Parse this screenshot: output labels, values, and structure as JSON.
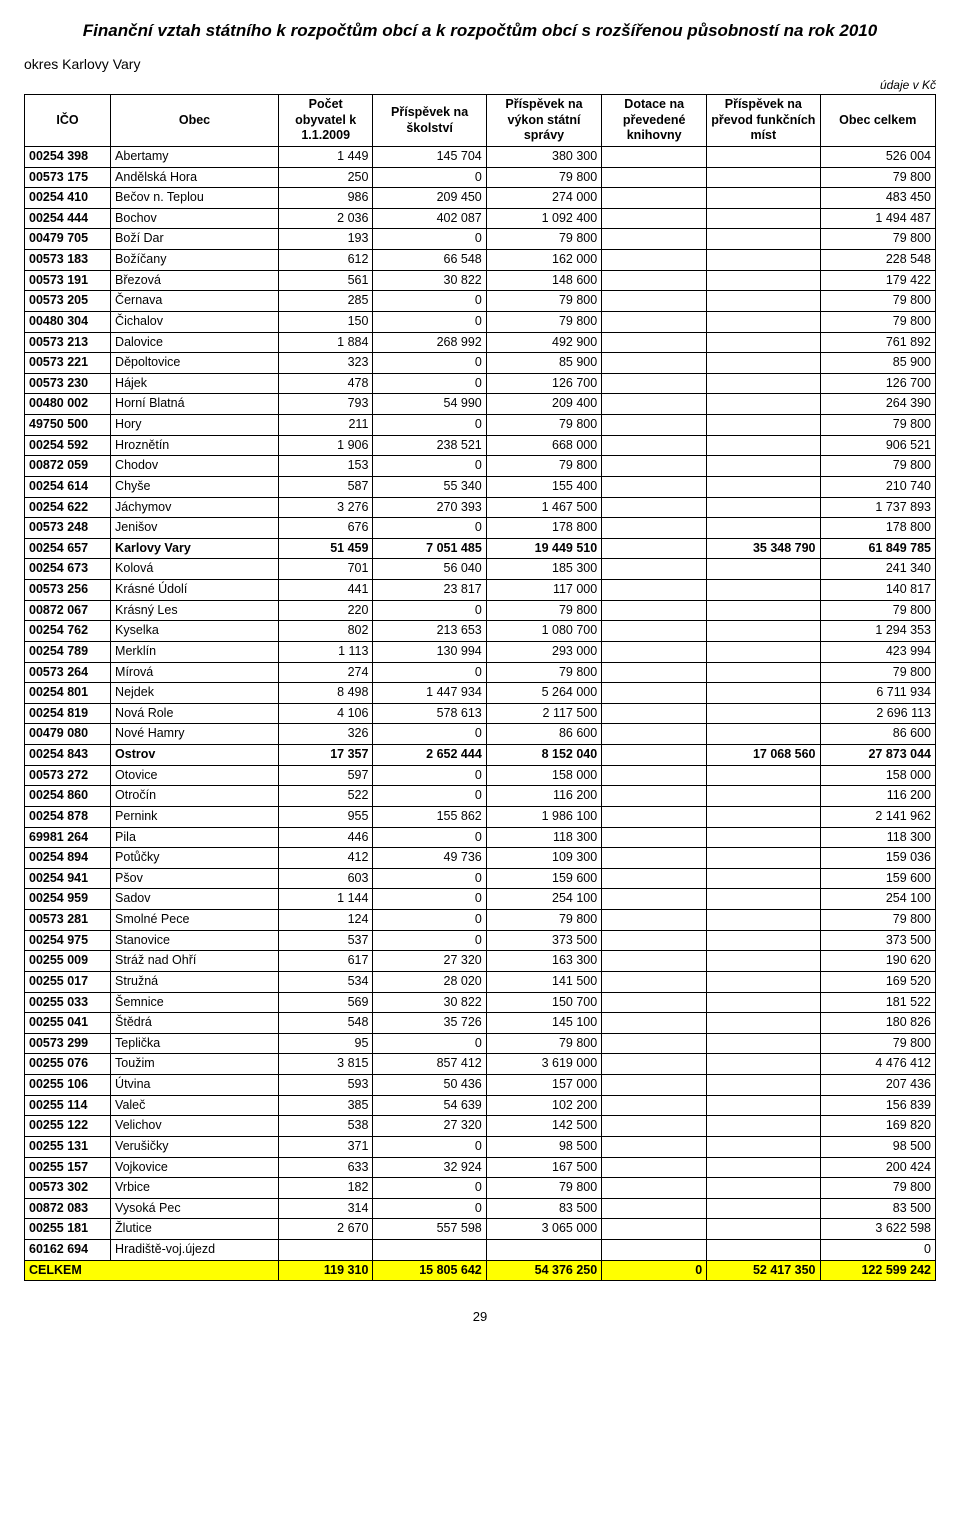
{
  "title": "Finanční vztah státního k rozpočtům obcí a k rozpočtům obcí s rozšířenou působností na rok 2010",
  "district_label": "okres Karlovy Vary",
  "units_label": "údaje v Kč",
  "page_number": "29",
  "columns": [
    "IČO",
    "Obec",
    "Počet obyvatel k 1.1.2009",
    "Příspěvek na školství",
    "Příspěvek na výkon státní správy",
    "Dotace na převedené knihovny",
    "Příspěvek na převod funkčních míst",
    "Obec celkem"
  ],
  "rows": [
    {
      "ico": "00254 398",
      "obec": "Abertamy",
      "v": [
        "1 449",
        "145 704",
        "380 300",
        "",
        "",
        "526 004"
      ]
    },
    {
      "ico": "00573 175",
      "obec": "Andělská Hora",
      "v": [
        "250",
        "0",
        "79 800",
        "",
        "",
        "79 800"
      ]
    },
    {
      "ico": "00254 410",
      "obec": "Bečov n. Teplou",
      "v": [
        "986",
        "209 450",
        "274 000",
        "",
        "",
        "483 450"
      ]
    },
    {
      "ico": "00254 444",
      "obec": "Bochov",
      "v": [
        "2 036",
        "402 087",
        "1 092 400",
        "",
        "",
        "1 494 487"
      ]
    },
    {
      "ico": "00479 705",
      "obec": "Boží Dar",
      "v": [
        "193",
        "0",
        "79 800",
        "",
        "",
        "79 800"
      ]
    },
    {
      "ico": "00573 183",
      "obec": "Božíčany",
      "v": [
        "612",
        "66 548",
        "162 000",
        "",
        "",
        "228 548"
      ]
    },
    {
      "ico": "00573 191",
      "obec": "Březová",
      "v": [
        "561",
        "30 822",
        "148 600",
        "",
        "",
        "179 422"
      ]
    },
    {
      "ico": "00573 205",
      "obec": "Černava",
      "v": [
        "285",
        "0",
        "79 800",
        "",
        "",
        "79 800"
      ]
    },
    {
      "ico": "00480 304",
      "obec": "Čichalov",
      "v": [
        "150",
        "0",
        "79 800",
        "",
        "",
        "79 800"
      ]
    },
    {
      "ico": "00573 213",
      "obec": "Dalovice",
      "v": [
        "1 884",
        "268 992",
        "492 900",
        "",
        "",
        "761 892"
      ]
    },
    {
      "ico": "00573 221",
      "obec": "Děpoltovice",
      "v": [
        "323",
        "0",
        "85 900",
        "",
        "",
        "85 900"
      ]
    },
    {
      "ico": "00573 230",
      "obec": "Hájek",
      "v": [
        "478",
        "0",
        "126 700",
        "",
        "",
        "126 700"
      ]
    },
    {
      "ico": "00480 002",
      "obec": "Horní Blatná",
      "v": [
        "793",
        "54 990",
        "209 400",
        "",
        "",
        "264 390"
      ]
    },
    {
      "ico": "49750 500",
      "obec": "Hory",
      "v": [
        "211",
        "0",
        "79 800",
        "",
        "",
        "79 800"
      ]
    },
    {
      "ico": "00254 592",
      "obec": "Hroznětín",
      "v": [
        "1 906",
        "238 521",
        "668 000",
        "",
        "",
        "906 521"
      ]
    },
    {
      "ico": "00872 059",
      "obec": "Chodov",
      "v": [
        "153",
        "0",
        "79 800",
        "",
        "",
        "79 800"
      ]
    },
    {
      "ico": "00254 614",
      "obec": "Chyše",
      "v": [
        "587",
        "55 340",
        "155 400",
        "",
        "",
        "210 740"
      ]
    },
    {
      "ico": "00254 622",
      "obec": "Jáchymov",
      "v": [
        "3 276",
        "270 393",
        "1 467 500",
        "",
        "",
        "1 737 893"
      ]
    },
    {
      "ico": "00573 248",
      "obec": "Jenišov",
      "v": [
        "676",
        "0",
        "178 800",
        "",
        "",
        "178 800"
      ]
    },
    {
      "ico": "00254 657",
      "obec": "Karlovy Vary",
      "v": [
        "51 459",
        "7 051 485",
        "19 449 510",
        "",
        "35 348 790",
        "61 849 785"
      ],
      "hl": true
    },
    {
      "ico": "00254 673",
      "obec": "Kolová",
      "v": [
        "701",
        "56 040",
        "185 300",
        "",
        "",
        "241 340"
      ]
    },
    {
      "ico": "00573 256",
      "obec": "Krásné Údolí",
      "v": [
        "441",
        "23 817",
        "117 000",
        "",
        "",
        "140 817"
      ]
    },
    {
      "ico": "00872 067",
      "obec": "Krásný Les",
      "v": [
        "220",
        "0",
        "79 800",
        "",
        "",
        "79 800"
      ]
    },
    {
      "ico": "00254 762",
      "obec": "Kyselka",
      "v": [
        "802",
        "213 653",
        "1 080 700",
        "",
        "",
        "1 294 353"
      ]
    },
    {
      "ico": "00254 789",
      "obec": "Merklín",
      "v": [
        "1 113",
        "130 994",
        "293 000",
        "",
        "",
        "423 994"
      ]
    },
    {
      "ico": "00573 264",
      "obec": "Mírová",
      "v": [
        "274",
        "0",
        "79 800",
        "",
        "",
        "79 800"
      ]
    },
    {
      "ico": "00254 801",
      "obec": "Nejdek",
      "v": [
        "8 498",
        "1 447 934",
        "5 264 000",
        "",
        "",
        "6 711 934"
      ]
    },
    {
      "ico": "00254 819",
      "obec": "Nová Role",
      "v": [
        "4 106",
        "578 613",
        "2 117 500",
        "",
        "",
        "2 696 113"
      ]
    },
    {
      "ico": "00479 080",
      "obec": "Nové Hamry",
      "v": [
        "326",
        "0",
        "86 600",
        "",
        "",
        "86 600"
      ]
    },
    {
      "ico": "00254 843",
      "obec": "Ostrov",
      "v": [
        "17 357",
        "2 652 444",
        "8 152 040",
        "",
        "17 068 560",
        "27 873 044"
      ],
      "hl": true
    },
    {
      "ico": "00573 272",
      "obec": "Otovice",
      "v": [
        "597",
        "0",
        "158 000",
        "",
        "",
        "158 000"
      ]
    },
    {
      "ico": "00254 860",
      "obec": "Otročín",
      "v": [
        "522",
        "0",
        "116 200",
        "",
        "",
        "116 200"
      ]
    },
    {
      "ico": "00254 878",
      "obec": "Pernink",
      "v": [
        "955",
        "155 862",
        "1 986 100",
        "",
        "",
        "2 141 962"
      ]
    },
    {
      "ico": "69981 264",
      "obec": "Pila",
      "v": [
        "446",
        "0",
        "118 300",
        "",
        "",
        "118 300"
      ]
    },
    {
      "ico": "00254 894",
      "obec": "Potůčky",
      "v": [
        "412",
        "49 736",
        "109 300",
        "",
        "",
        "159 036"
      ]
    },
    {
      "ico": "00254 941",
      "obec": "Pšov",
      "v": [
        "603",
        "0",
        "159 600",
        "",
        "",
        "159 600"
      ]
    },
    {
      "ico": "00254 959",
      "obec": "Sadov",
      "v": [
        "1 144",
        "0",
        "254 100",
        "",
        "",
        "254 100"
      ]
    },
    {
      "ico": "00573 281",
      "obec": "Smolné Pece",
      "v": [
        "124",
        "0",
        "79 800",
        "",
        "",
        "79 800"
      ]
    },
    {
      "ico": "00254 975",
      "obec": "Stanovice",
      "v": [
        "537",
        "0",
        "373 500",
        "",
        "",
        "373 500"
      ]
    },
    {
      "ico": "00255 009",
      "obec": "Stráž nad Ohří",
      "v": [
        "617",
        "27 320",
        "163 300",
        "",
        "",
        "190 620"
      ]
    },
    {
      "ico": "00255 017",
      "obec": "Stružná",
      "v": [
        "534",
        "28 020",
        "141 500",
        "",
        "",
        "169 520"
      ]
    },
    {
      "ico": "00255 033",
      "obec": "Šemnice",
      "v": [
        "569",
        "30 822",
        "150 700",
        "",
        "",
        "181 522"
      ]
    },
    {
      "ico": "00255 041",
      "obec": "Štědrá",
      "v": [
        "548",
        "35 726",
        "145 100",
        "",
        "",
        "180 826"
      ]
    },
    {
      "ico": "00573 299",
      "obec": "Teplička",
      "v": [
        "95",
        "0",
        "79 800",
        "",
        "",
        "79 800"
      ]
    },
    {
      "ico": "00255 076",
      "obec": "Toužim",
      "v": [
        "3 815",
        "857 412",
        "3 619 000",
        "",
        "",
        "4 476 412"
      ]
    },
    {
      "ico": "00255 106",
      "obec": "Útvina",
      "v": [
        "593",
        "50 436",
        "157 000",
        "",
        "",
        "207 436"
      ]
    },
    {
      "ico": "00255 114",
      "obec": "Valeč",
      "v": [
        "385",
        "54 639",
        "102 200",
        "",
        "",
        "156 839"
      ]
    },
    {
      "ico": "00255 122",
      "obec": "Velichov",
      "v": [
        "538",
        "27 320",
        "142 500",
        "",
        "",
        "169 820"
      ]
    },
    {
      "ico": "00255 131",
      "obec": "Verušičky",
      "v": [
        "371",
        "0",
        "98 500",
        "",
        "",
        "98 500"
      ]
    },
    {
      "ico": "00255 157",
      "obec": "Vojkovice",
      "v": [
        "633",
        "32 924",
        "167 500",
        "",
        "",
        "200 424"
      ]
    },
    {
      "ico": "00573 302",
      "obec": "Vrbice",
      "v": [
        "182",
        "0",
        "79 800",
        "",
        "",
        "79 800"
      ]
    },
    {
      "ico": "00872 083",
      "obec": "Vysoká Pec",
      "v": [
        "314",
        "0",
        "83 500",
        "",
        "",
        "83 500"
      ]
    },
    {
      "ico": "00255 181",
      "obec": "Žlutice",
      "v": [
        "2 670",
        "557 598",
        "3 065 000",
        "",
        "",
        "3 622 598"
      ]
    },
    {
      "ico": "60162 694",
      "obec": "Hradiště-voj.újezd",
      "v": [
        "",
        "",
        "",
        "",
        "",
        "0"
      ]
    }
  ],
  "total": {
    "label": "CELKEM",
    "v": [
      "119 310",
      "15 805 642",
      "54 376 250",
      "0",
      "52 417 350",
      "122 599 242"
    ]
  }
}
